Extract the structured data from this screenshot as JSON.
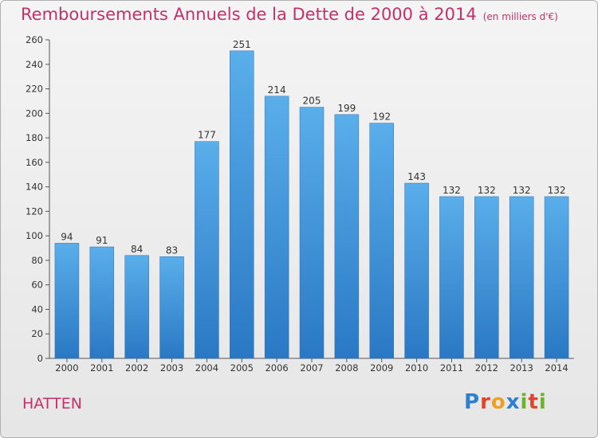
{
  "chart_data": {
    "type": "bar",
    "title": "Remboursements Annuels de la Dette de 2000 à 2014",
    "unit": "(en milliers d'€)",
    "categories": [
      "2000",
      "2001",
      "2002",
      "2003",
      "2004",
      "2005",
      "2006",
      "2007",
      "2008",
      "2009",
      "2010",
      "2011",
      "2012",
      "2013",
      "2014"
    ],
    "values": [
      94,
      91,
      84,
      83,
      177,
      251,
      214,
      205,
      199,
      192,
      143,
      132,
      132,
      132,
      132
    ],
    "ylim": [
      0,
      260
    ],
    "yticks": [
      0,
      20,
      40,
      60,
      80,
      100,
      120,
      140,
      160,
      180,
      200,
      220,
      240,
      260
    ],
    "grid": false,
    "bar_color": "#3a8fd8"
  },
  "footer": {
    "city": "HATTEN"
  },
  "logo": {
    "text": "Proxiti",
    "letters": [
      {
        "ch": "P",
        "color": "#2f7fd0"
      },
      {
        "ch": "r",
        "color": "#e0452c"
      },
      {
        "ch": "o",
        "color": "#f0a020"
      },
      {
        "ch": "x",
        "color": "#2f7fd0"
      },
      {
        "ch": "i",
        "color": "#6ab42d"
      },
      {
        "ch": "t",
        "color": "#e0452c"
      },
      {
        "ch": "i",
        "color": "#6ab42d"
      }
    ]
  }
}
